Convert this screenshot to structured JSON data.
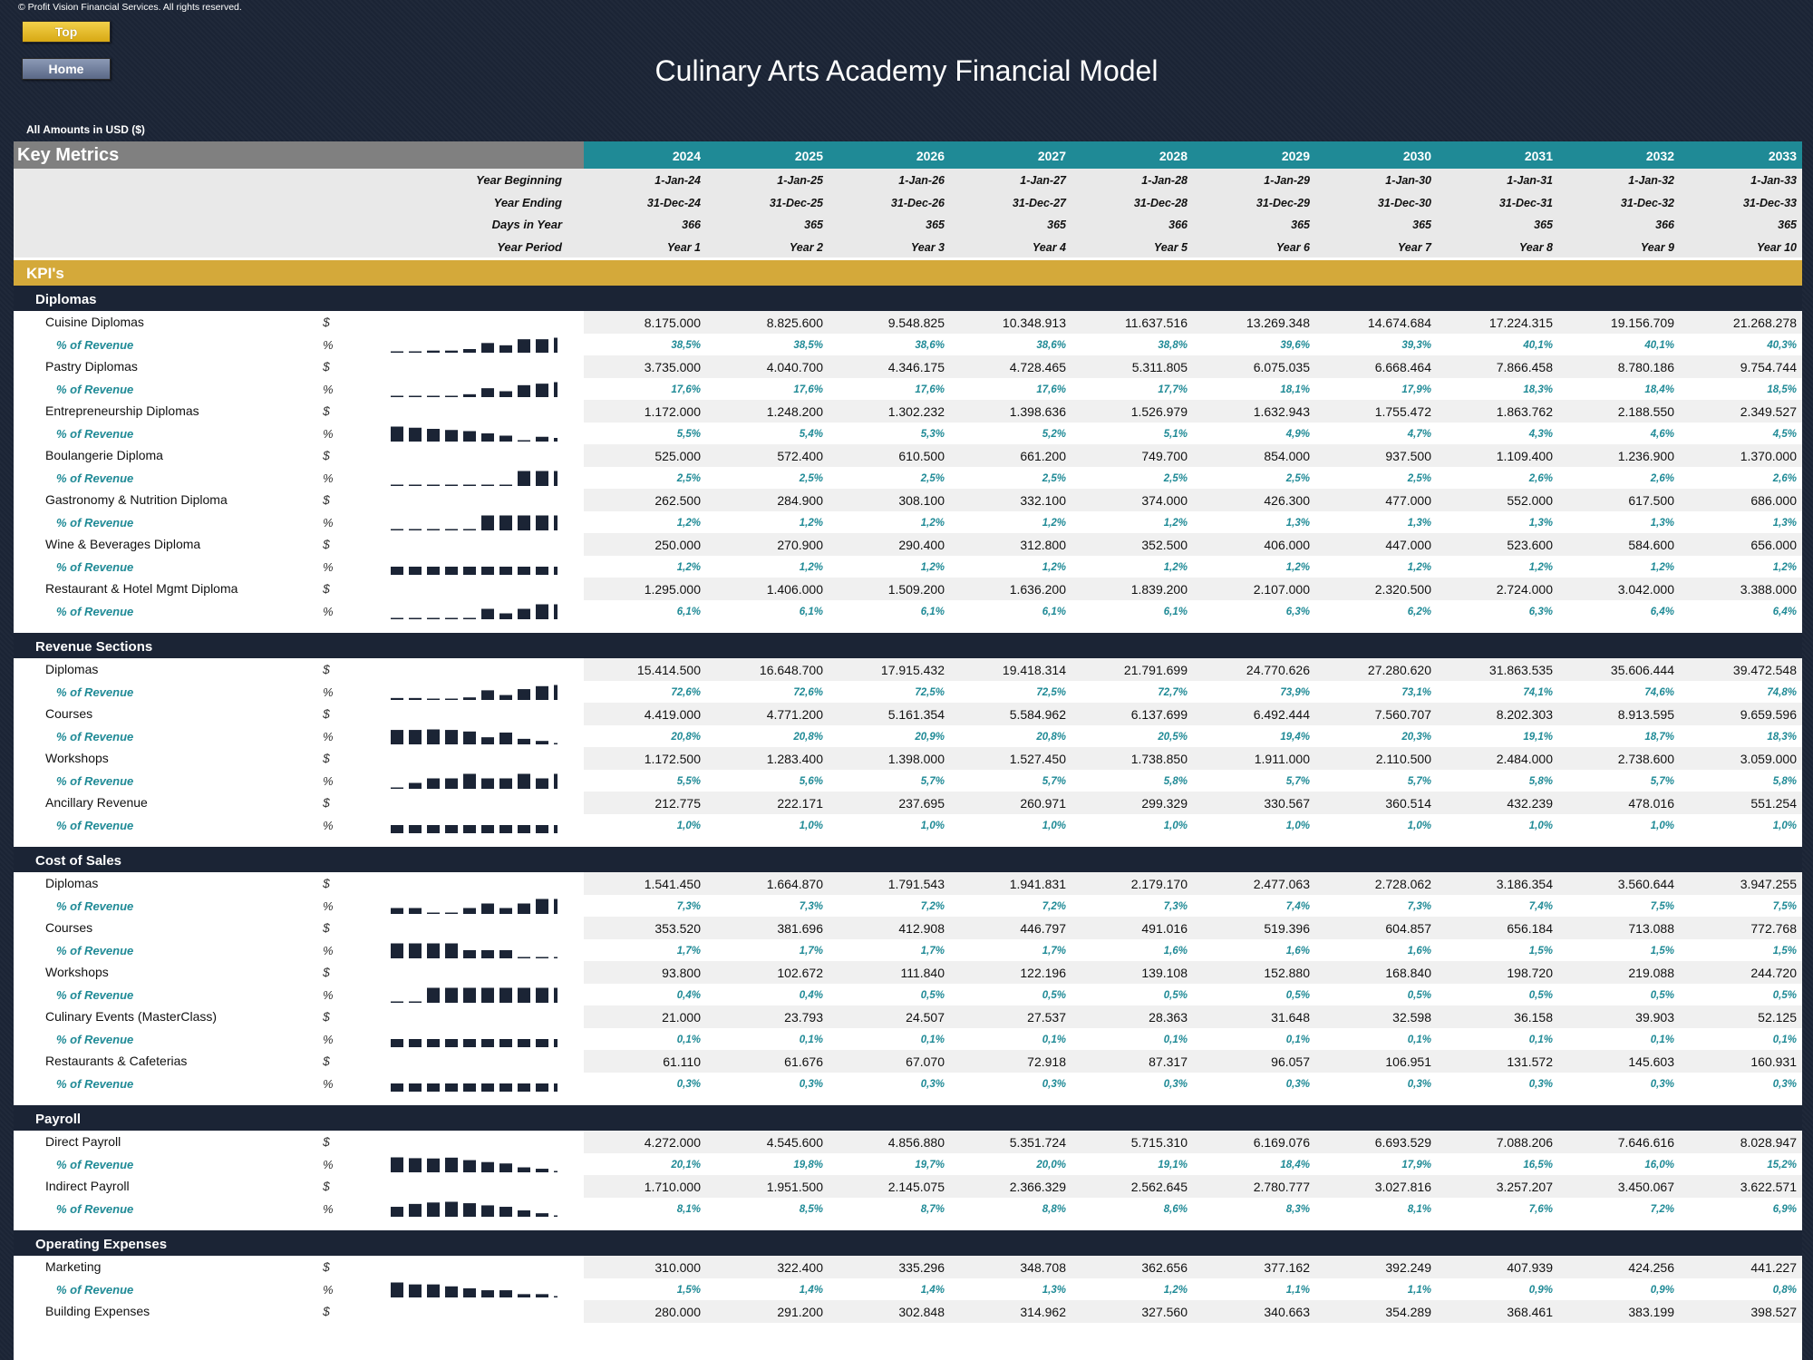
{
  "header": {
    "copyright": "© Profit Vision Financial Services. All rights reserved.",
    "top_button": "Top",
    "home_button": "Home",
    "title": "Culinary Arts Academy Financial Model",
    "amounts_note": "All Amounts in  USD ($)"
  },
  "table": {
    "section_title": "Key Metrics",
    "kpi_title": "KPI's",
    "years": [
      "2024",
      "2025",
      "2026",
      "2027",
      "2028",
      "2029",
      "2030",
      "2031",
      "2032",
      "2033"
    ],
    "info_rows": [
      {
        "label": "Year Beginning",
        "values": [
          "1-Jan-24",
          "1-Jan-25",
          "1-Jan-26",
          "1-Jan-27",
          "1-Jan-28",
          "1-Jan-29",
          "1-Jan-30",
          "1-Jan-31",
          "1-Jan-32",
          "1-Jan-33"
        ]
      },
      {
        "label": "Year Ending",
        "values": [
          "31-Dec-24",
          "31-Dec-25",
          "31-Dec-26",
          "31-Dec-27",
          "31-Dec-28",
          "31-Dec-29",
          "31-Dec-30",
          "31-Dec-31",
          "31-Dec-32",
          "31-Dec-33"
        ]
      },
      {
        "label": "Days in Year",
        "values": [
          "366",
          "365",
          "365",
          "365",
          "366",
          "365",
          "365",
          "365",
          "366",
          "365"
        ]
      },
      {
        "label": "Year Period",
        "values": [
          "Year 1",
          "Year 2",
          "Year 3",
          "Year 4",
          "Year 5",
          "Year 6",
          "Year 7",
          "Year 8",
          "Year 9",
          "Year 10"
        ]
      }
    ],
    "sections": [
      {
        "title": "Diplomas",
        "items": [
          {
            "label": "Cuisine Diplomas",
            "unit": "$",
            "values": [
              "8.175.000",
              "8.825.600",
              "9.548.825",
              "10.348.913",
              "11.637.516",
              "13.269.348",
              "14.674.684",
              "17.224.315",
              "19.156.709",
              "21.268.278"
            ],
            "pct_label": "% of Revenue",
            "pct_unit": "%",
            "pct": [
              "38,5%",
              "38,5%",
              "38,6%",
              "38,6%",
              "38,8%",
              "39,6%",
              "39,3%",
              "40,1%",
              "40,1%",
              "40,3%"
            ]
          },
          {
            "label": "Pastry Diplomas",
            "unit": "$",
            "values": [
              "3.735.000",
              "4.040.700",
              "4.346.175",
              "4.728.465",
              "5.311.805",
              "6.075.035",
              "6.668.464",
              "7.866.458",
              "8.780.186",
              "9.754.744"
            ],
            "pct_label": "% of Revenue",
            "pct_unit": "%",
            "pct": [
              "17,6%",
              "17,6%",
              "17,6%",
              "17,6%",
              "17,7%",
              "18,1%",
              "17,9%",
              "18,3%",
              "18,4%",
              "18,5%"
            ]
          },
          {
            "label": "Entrepreneurship Diplomas",
            "unit": "$",
            "values": [
              "1.172.000",
              "1.248.200",
              "1.302.232",
              "1.398.636",
              "1.526.979",
              "1.632.943",
              "1.755.472",
              "1.863.762",
              "2.188.550",
              "2.349.527"
            ],
            "pct_label": "% of Revenue",
            "pct_unit": "%",
            "pct": [
              "5,5%",
              "5,4%",
              "5,3%",
              "5,2%",
              "5,1%",
              "4,9%",
              "4,7%",
              "4,3%",
              "4,6%",
              "4,5%"
            ]
          },
          {
            "label": "Boulangerie Diploma",
            "unit": "$",
            "values": [
              "525.000",
              "572.400",
              "610.500",
              "661.200",
              "749.700",
              "854.000",
              "937.500",
              "1.109.400",
              "1.236.900",
              "1.370.000"
            ],
            "pct_label": "% of Revenue",
            "pct_unit": "%",
            "pct": [
              "2,5%",
              "2,5%",
              "2,5%",
              "2,5%",
              "2,5%",
              "2,5%",
              "2,5%",
              "2,6%",
              "2,6%",
              "2,6%"
            ]
          },
          {
            "label": "Gastronomy & Nutrition Diploma",
            "unit": "$",
            "values": [
              "262.500",
              "284.900",
              "308.100",
              "332.100",
              "374.000",
              "426.300",
              "477.000",
              "552.000",
              "617.500",
              "686.000"
            ],
            "pct_label": "% of Revenue",
            "pct_unit": "%",
            "pct": [
              "1,2%",
              "1,2%",
              "1,2%",
              "1,2%",
              "1,2%",
              "1,3%",
              "1,3%",
              "1,3%",
              "1,3%",
              "1,3%"
            ]
          },
          {
            "label": "Wine & Beverages Diploma",
            "unit": "$",
            "values": [
              "250.000",
              "270.900",
              "290.400",
              "312.800",
              "352.500",
              "406.000",
              "447.000",
              "523.600",
              "584.600",
              "656.000"
            ],
            "pct_label": "% of Revenue",
            "pct_unit": "%",
            "pct": [
              "1,2%",
              "1,2%",
              "1,2%",
              "1,2%",
              "1,2%",
              "1,2%",
              "1,2%",
              "1,2%",
              "1,2%",
              "1,2%"
            ]
          },
          {
            "label": "Restaurant & Hotel Mgmt Diploma",
            "unit": "$",
            "values": [
              "1.295.000",
              "1.406.000",
              "1.509.200",
              "1.636.200",
              "1.839.200",
              "2.107.000",
              "2.320.500",
              "2.724.000",
              "3.042.000",
              "3.388.000"
            ],
            "pct_label": "% of Revenue",
            "pct_unit": "%",
            "pct": [
              "6,1%",
              "6,1%",
              "6,1%",
              "6,1%",
              "6,1%",
              "6,3%",
              "6,2%",
              "6,3%",
              "6,4%",
              "6,4%"
            ]
          }
        ]
      },
      {
        "title": "Revenue Sections",
        "items": [
          {
            "label": "Diplomas",
            "unit": "$",
            "values": [
              "15.414.500",
              "16.648.700",
              "17.915.432",
              "19.418.314",
              "21.791.699",
              "24.770.626",
              "27.280.620",
              "31.863.535",
              "35.606.444",
              "39.472.548"
            ],
            "pct_label": "% of Revenue",
            "pct_unit": "%",
            "pct": [
              "72,6%",
              "72,6%",
              "72,5%",
              "72,5%",
              "72,7%",
              "73,9%",
              "73,1%",
              "74,1%",
              "74,6%",
              "74,8%"
            ]
          },
          {
            "label": "Courses",
            "unit": "$",
            "values": [
              "4.419.000",
              "4.771.200",
              "5.161.354",
              "5.584.962",
              "6.137.699",
              "6.492.444",
              "7.560.707",
              "8.202.303",
              "8.913.595",
              "9.659.596"
            ],
            "pct_label": "% of Revenue",
            "pct_unit": "%",
            "pct": [
              "20,8%",
              "20,8%",
              "20,9%",
              "20,8%",
              "20,5%",
              "19,4%",
              "20,3%",
              "19,1%",
              "18,7%",
              "18,3%"
            ]
          },
          {
            "label": "Workshops",
            "unit": "$",
            "values": [
              "1.172.500",
              "1.283.400",
              "1.398.000",
              "1.527.450",
              "1.738.850",
              "1.911.000",
              "2.110.500",
              "2.484.000",
              "2.738.600",
              "3.059.000"
            ],
            "pct_label": "% of Revenue",
            "pct_unit": "%",
            "pct": [
              "5,5%",
              "5,6%",
              "5,7%",
              "5,7%",
              "5,8%",
              "5,7%",
              "5,7%",
              "5,8%",
              "5,7%",
              "5,8%"
            ]
          },
          {
            "label": "Ancillary Revenue",
            "unit": "$",
            "values": [
              "212.775",
              "222.171",
              "237.695",
              "260.971",
              "299.329",
              "330.567",
              "360.514",
              "432.239",
              "478.016",
              "551.254"
            ],
            "pct_label": "% of Revenue",
            "pct_unit": "%",
            "pct": [
              "1,0%",
              "1,0%",
              "1,0%",
              "1,0%",
              "1,0%",
              "1,0%",
              "1,0%",
              "1,0%",
              "1,0%",
              "1,0%"
            ]
          }
        ]
      },
      {
        "title": "Cost of Sales",
        "items": [
          {
            "label": "Diplomas",
            "unit": "$",
            "values": [
              "1.541.450",
              "1.664.870",
              "1.791.543",
              "1.941.831",
              "2.179.170",
              "2.477.063",
              "2.728.062",
              "3.186.354",
              "3.560.644",
              "3.947.255"
            ],
            "pct_label": "% of Revenue",
            "pct_unit": "%",
            "pct": [
              "7,3%",
              "7,3%",
              "7,2%",
              "7,2%",
              "7,3%",
              "7,4%",
              "7,3%",
              "7,4%",
              "7,5%",
              "7,5%"
            ]
          },
          {
            "label": "Courses",
            "unit": "$",
            "values": [
              "353.520",
              "381.696",
              "412.908",
              "446.797",
              "491.016",
              "519.396",
              "604.857",
              "656.184",
              "713.088",
              "772.768"
            ],
            "pct_label": "% of Revenue",
            "pct_unit": "%",
            "pct": [
              "1,7%",
              "1,7%",
              "1,7%",
              "1,7%",
              "1,6%",
              "1,6%",
              "1,6%",
              "1,5%",
              "1,5%",
              "1,5%"
            ]
          },
          {
            "label": "Workshops",
            "unit": "$",
            "values": [
              "93.800",
              "102.672",
              "111.840",
              "122.196",
              "139.108",
              "152.880",
              "168.840",
              "198.720",
              "219.088",
              "244.720"
            ],
            "pct_label": "% of Revenue",
            "pct_unit": "%",
            "pct": [
              "0,4%",
              "0,4%",
              "0,5%",
              "0,5%",
              "0,5%",
              "0,5%",
              "0,5%",
              "0,5%",
              "0,5%",
              "0,5%"
            ]
          },
          {
            "label": "Culinary Events (MasterClass)",
            "unit": "$",
            "values": [
              "21.000",
              "23.793",
              "24.507",
              "27.537",
              "28.363",
              "31.648",
              "32.598",
              "36.158",
              "39.903",
              "52.125"
            ],
            "pct_label": "% of Revenue",
            "pct_unit": "%",
            "pct": [
              "0,1%",
              "0,1%",
              "0,1%",
              "0,1%",
              "0,1%",
              "0,1%",
              "0,1%",
              "0,1%",
              "0,1%",
              "0,1%"
            ]
          },
          {
            "label": "Restaurants & Cafeterias",
            "unit": "$",
            "values": [
              "61.110",
              "61.676",
              "67.070",
              "72.918",
              "87.317",
              "96.057",
              "106.951",
              "131.572",
              "145.603",
              "160.931"
            ],
            "pct_label": "% of Revenue",
            "pct_unit": "%",
            "pct": [
              "0,3%",
              "0,3%",
              "0,3%",
              "0,3%",
              "0,3%",
              "0,3%",
              "0,3%",
              "0,3%",
              "0,3%",
              "0,3%"
            ]
          }
        ]
      },
      {
        "title": "Payroll",
        "items": [
          {
            "label": "Direct Payroll",
            "unit": "$",
            "values": [
              "4.272.000",
              "4.545.600",
              "4.856.880",
              "5.351.724",
              "5.715.310",
              "6.169.076",
              "6.693.529",
              "7.088.206",
              "7.646.616",
              "8.028.947"
            ],
            "pct_label": "% of Revenue",
            "pct_unit": "%",
            "pct": [
              "20,1%",
              "19,8%",
              "19,7%",
              "20,0%",
              "19,1%",
              "18,4%",
              "17,9%",
              "16,5%",
              "16,0%",
              "15,2%"
            ]
          },
          {
            "label": "Indirect Payroll",
            "unit": "$",
            "values": [
              "1.710.000",
              "1.951.500",
              "2.145.075",
              "2.366.329",
              "2.562.645",
              "2.780.777",
              "3.027.816",
              "3.257.207",
              "3.450.067",
              "3.622.571"
            ],
            "pct_label": "% of Revenue",
            "pct_unit": "%",
            "pct": [
              "8,1%",
              "8,5%",
              "8,7%",
              "8,8%",
              "8,6%",
              "8,3%",
              "8,1%",
              "7,6%",
              "7,2%",
              "6,9%"
            ]
          }
        ]
      },
      {
        "title": "Operating Expenses",
        "items": [
          {
            "label": "Marketing",
            "unit": "$",
            "values": [
              "310.000",
              "322.400",
              "335.296",
              "348.708",
              "362.656",
              "377.162",
              "392.249",
              "407.939",
              "424.256",
              "441.227"
            ],
            "pct_label": "% of Revenue",
            "pct_unit": "%",
            "pct": [
              "1,5%",
              "1,4%",
              "1,4%",
              "1,3%",
              "1,2%",
              "1,1%",
              "1,1%",
              "0,9%",
              "0,9%",
              "0,8%"
            ]
          },
          {
            "label": "Building Expenses",
            "unit": "$",
            "values": [
              "280.000",
              "291.200",
              "302.848",
              "314.962",
              "327.560",
              "340.663",
              "354.289",
              "368.461",
              "383.199",
              "398.527"
            ]
          }
        ]
      }
    ]
  }
}
